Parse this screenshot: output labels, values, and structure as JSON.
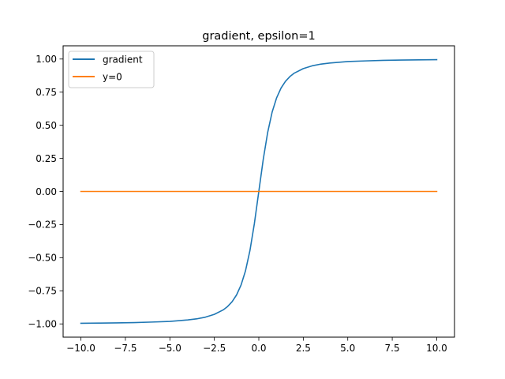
{
  "chart_data": {
    "type": "line",
    "title": "gradient, epsilon=1",
    "xlabel": "",
    "ylabel": "",
    "xlim": [
      -11,
      11
    ],
    "ylim": [
      -1.1,
      1.1
    ],
    "xticks": [
      -10.0,
      -7.5,
      -5.0,
      -2.5,
      0.0,
      2.5,
      5.0,
      7.5,
      10.0
    ],
    "xtick_labels": [
      "−10.0",
      "−7.5",
      "−5.0",
      "−2.5",
      "0.0",
      "2.5",
      "5.0",
      "7.5",
      "10.0"
    ],
    "yticks": [
      -1.0,
      -0.75,
      -0.5,
      -0.25,
      0.0,
      0.25,
      0.5,
      0.75,
      1.0
    ],
    "ytick_labels": [
      "−1.00",
      "−0.75",
      "−0.50",
      "−0.25",
      "0.00",
      "0.25",
      "0.50",
      "0.75",
      "1.00"
    ],
    "grid": false,
    "legend": "upper-left",
    "series": [
      {
        "name": "gradient",
        "color": "#1f77b4",
        "x": [
          -10,
          -9,
          -8,
          -7,
          -6,
          -5,
          -4,
          -3.5,
          -3,
          -2.5,
          -2,
          -1.75,
          -1.5,
          -1.25,
          -1,
          -0.75,
          -0.5,
          -0.25,
          0,
          0.25,
          0.5,
          0.75,
          1,
          1.25,
          1.5,
          1.75,
          2,
          2.5,
          3,
          3.5,
          4,
          5,
          6,
          7,
          8,
          9,
          10
        ],
        "y": [
          -0.995,
          -0.994,
          -0.992,
          -0.99,
          -0.986,
          -0.981,
          -0.97,
          -0.962,
          -0.949,
          -0.928,
          -0.894,
          -0.868,
          -0.832,
          -0.781,
          -0.707,
          -0.6,
          -0.447,
          -0.243,
          0.0,
          0.243,
          0.447,
          0.6,
          0.707,
          0.781,
          0.832,
          0.868,
          0.894,
          0.928,
          0.949,
          0.962,
          0.97,
          0.981,
          0.986,
          0.99,
          0.992,
          0.994,
          0.995
        ]
      },
      {
        "name": "y=0",
        "color": "#ff7f0e",
        "x": [
          -10,
          10
        ],
        "y": [
          0,
          0
        ]
      }
    ]
  }
}
